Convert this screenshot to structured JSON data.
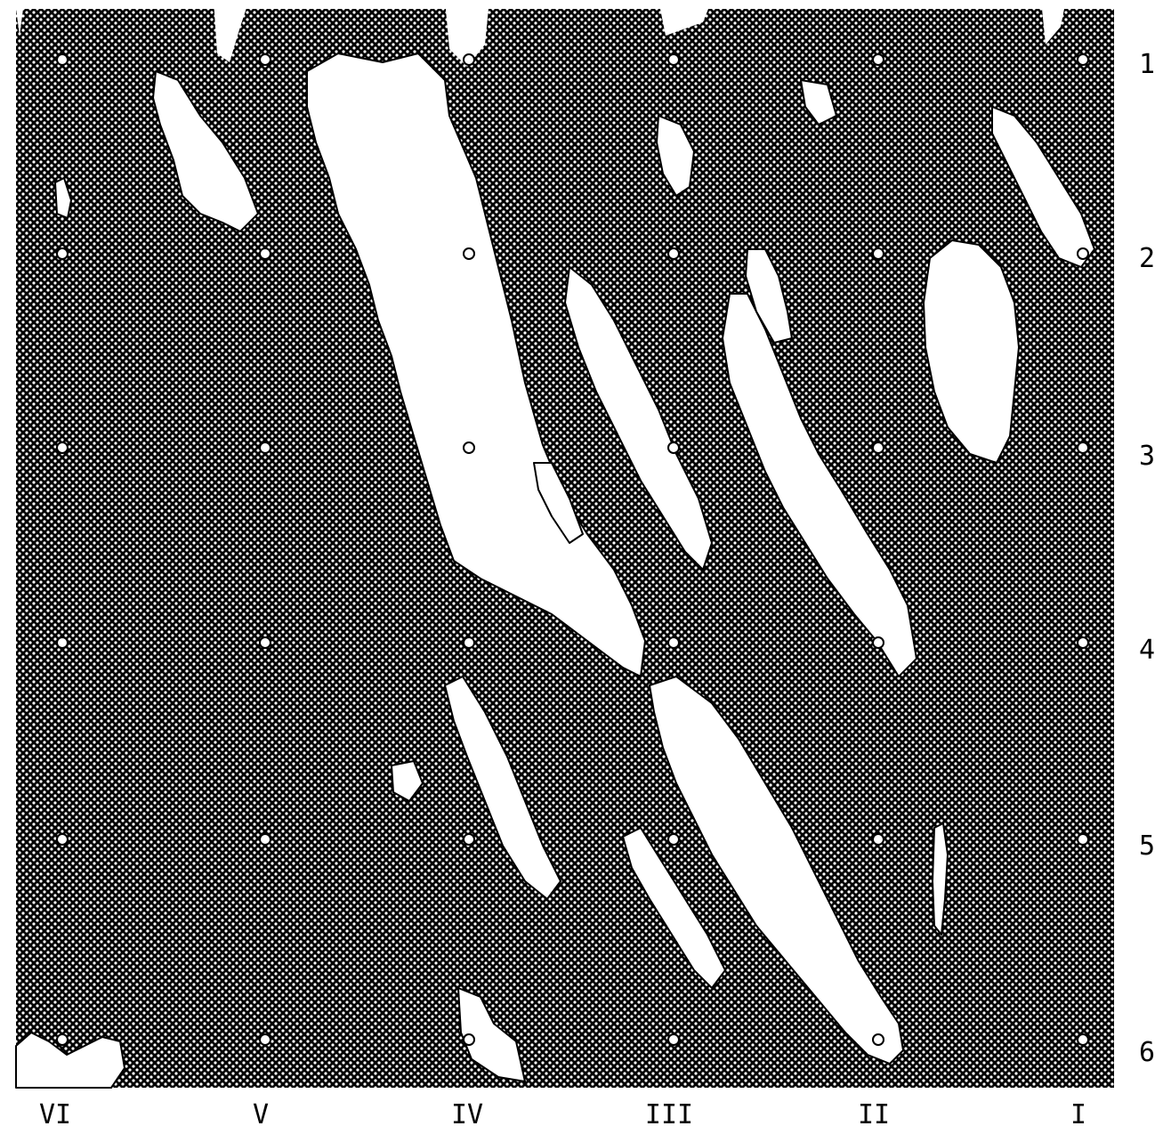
{
  "map": {
    "columns": [
      "VI",
      "V",
      "IV",
      "III",
      "II",
      "I"
    ],
    "rows": [
      "1",
      "2",
      "3",
      "4",
      "5",
      "6"
    ],
    "colors": {
      "dark": "#000000",
      "light": "#ffffff",
      "outline": "#000000"
    }
  }
}
